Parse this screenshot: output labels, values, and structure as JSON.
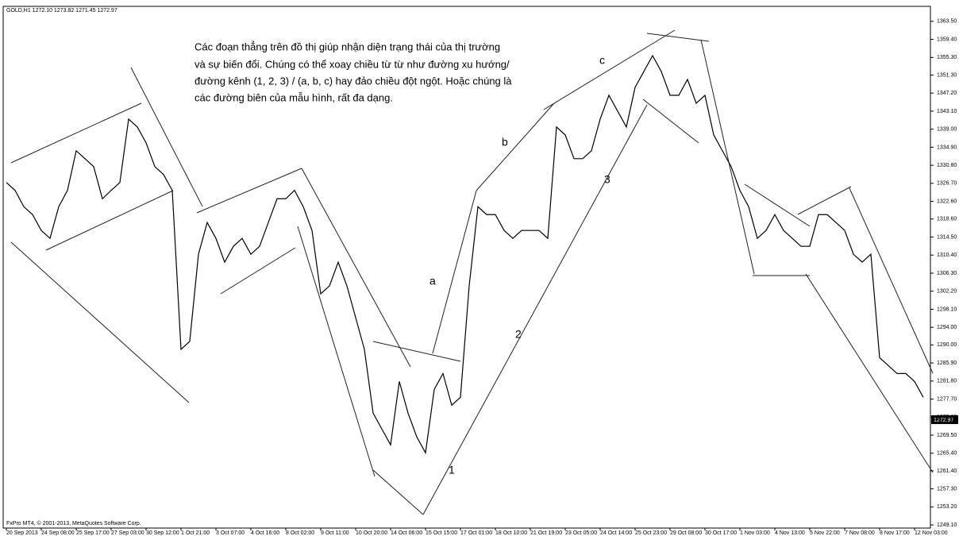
{
  "header": "GOLD,H1 1272.10 1273.82 1271.45 1272.97",
  "footer": "FxPro MT4, © 2001-2013, MetaQuotes Software Corp.",
  "price_tag": "1272.97",
  "note": [
    "Các đoạn thẳng trên đồ thị giúp nhận diện trạng thái của thị trường",
    "và sự biến đổi. Chúng có thể xoay chiều từ từ như đường xu hướng/",
    "đường kênh (1, 2, 3) / (a, b, c) hay đảo chiều đột ngột. Hoặc chúng là",
    "các đường biên của mẫu hình, rất đa dạng."
  ],
  "labels": [
    "a",
    "b",
    "c",
    "1",
    "2",
    "3"
  ],
  "chart_data": {
    "type": "line",
    "color": "#000000",
    "categories": [
      "20 Sep 2013",
      null,
      null,
      null,
      "24 Sep 08:00",
      null,
      null,
      null,
      "25 Sep 17:00",
      null,
      null,
      null,
      "27 Sep 03:00",
      null,
      null,
      null,
      "30 Sep 12:00",
      null,
      null,
      null,
      "1 Oct 21:00",
      null,
      null,
      null,
      "3 Oct 07:00",
      null,
      null,
      null,
      "4 Oct 16:00",
      null,
      null,
      null,
      "8 Oct 02:00",
      null,
      null,
      null,
      "9 Oct 11:00",
      null,
      null,
      null,
      "10 Oct 20:00",
      null,
      null,
      null,
      "14 Oct 06:00",
      null,
      null,
      null,
      "15 Oct 15:00",
      null,
      null,
      null,
      "17 Oct 01:00",
      null,
      null,
      null,
      "18 Oct 10:00",
      null,
      null,
      null,
      "21 Oct 19:00",
      null,
      null,
      null,
      "23 Oct 05:00",
      null,
      null,
      null,
      "24 Oct 14:00",
      null,
      null,
      null,
      "25 Oct 23:00",
      null,
      null,
      null,
      "29 Oct 08:00",
      null,
      null,
      null,
      "30 Oct 17:00",
      null,
      null,
      null,
      "1 Nov 03:00",
      null,
      null,
      null,
      "4 Nov 13:00",
      null,
      null,
      null,
      "5 Nov 22:00",
      null,
      null,
      null,
      "7 Nov 08:00",
      null,
      null,
      null,
      "8 Nov 17:00",
      null,
      null,
      null,
      "12 Nov 03:00",
      null
    ],
    "values": [
      1326.9,
      1325.1,
      1321.4,
      1319.6,
      1316.0,
      1314.2,
      1321.4,
      1325.1,
      1334.1,
      1332.3,
      1330.5,
      1323.2,
      1325.1,
      1326.9,
      1341.3,
      1339.5,
      1335.9,
      1330.5,
      1328.7,
      1325.1,
      1289.0,
      1290.8,
      1310.6,
      1317.8,
      1314.2,
      1308.8,
      1312.4,
      1314.2,
      1310.6,
      1312.4,
      1317.8,
      1323.2,
      1323.2,
      1325.1,
      1321.4,
      1316.0,
      1301.6,
      1303.4,
      1308.8,
      1303.4,
      1296.2,
      1289.0,
      1274.5,
      1270.9,
      1267.3,
      1281.7,
      1274.5,
      1269.1,
      1265.5,
      1279.9,
      1283.5,
      1276.3,
      1278.1,
      1303.4,
      1321.4,
      1319.6,
      1319.6,
      1316.0,
      1314.2,
      1316.0,
      1316.0,
      1316.0,
      1314.2,
      1339.5,
      1337.7,
      1332.3,
      1332.3,
      1334.1,
      1341.3,
      1346.7,
      1343.1,
      1339.5,
      1348.5,
      1352.1,
      1355.7,
      1352.1,
      1346.7,
      1346.7,
      1350.3,
      1344.9,
      1346.7,
      1337.7,
      1334.1,
      1330.5,
      1325.1,
      1321.4,
      1314.2,
      1316.0,
      1319.6,
      1316.0,
      1314.2,
      1312.4,
      1312.4,
      1319.6,
      1319.6,
      1317.8,
      1316.0,
      1310.6,
      1308.8,
      1310.6,
      1287.1,
      1285.3,
      1283.5,
      1283.5,
      1281.7,
      1278.1
    ],
    "ylim": [
      1248.4,
      1366.9
    ],
    "yticks": [
      {
        "value": 1363.5,
        "label": "1363.50"
      },
      {
        "value": 1359.4,
        "label": "1359.40"
      },
      {
        "value": 1355.3,
        "label": "1355.30"
      },
      {
        "value": 1351.3,
        "label": "1351.30"
      },
      {
        "value": 1347.2,
        "label": "1347.20"
      },
      {
        "value": 1343.1,
        "label": "1343.10"
      },
      {
        "value": 1339.0,
        "label": "1339.00"
      },
      {
        "value": 1334.9,
        "label": "1334.90"
      },
      {
        "value": 1330.8,
        "label": "1330.80"
      },
      {
        "value": 1326.7,
        "label": "1326.70"
      },
      {
        "value": 1322.6,
        "label": "1322.60"
      },
      {
        "value": 1318.6,
        "label": "1318.60"
      },
      {
        "value": 1314.5,
        "label": "1314.50"
      },
      {
        "value": 1310.4,
        "label": "1310.40"
      },
      {
        "value": 1306.3,
        "label": "1306.30"
      },
      {
        "value": 1302.2,
        "label": "1302.20"
      },
      {
        "value": 1298.1,
        "label": "1298.10"
      },
      {
        "value": 1294.0,
        "label": "1294.00"
      },
      {
        "value": 1290.0,
        "label": "1290.00"
      },
      {
        "value": 1285.9,
        "label": "1285.90"
      },
      {
        "value": 1281.8,
        "label": "1281.80"
      },
      {
        "value": 1277.7,
        "label": "1277.70"
      },
      {
        "value": 1273.6,
        "label": "1273.60"
      },
      {
        "value": 1269.5,
        "label": "1269.50"
      },
      {
        "value": 1265.4,
        "label": "1265.40"
      },
      {
        "value": 1261.4,
        "label": "1261.40"
      },
      {
        "value": 1257.3,
        "label": "1257.30"
      },
      {
        "value": 1253.2,
        "label": "1253.20"
      },
      {
        "value": 1249.1,
        "label": "1249.10"
      }
    ],
    "grid": false
  }
}
